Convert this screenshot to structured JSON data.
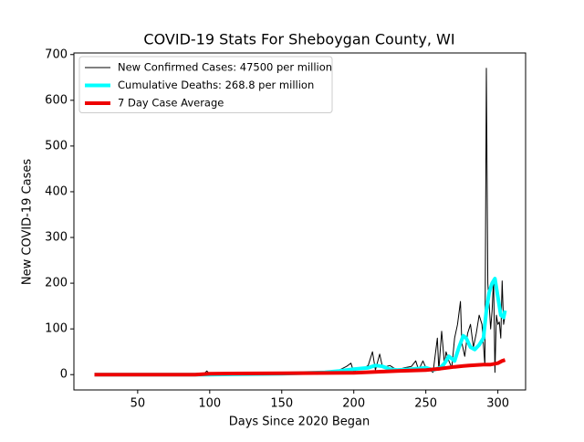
{
  "chart_data": {
    "type": "line",
    "title": "COVID-19 Stats For Sheboygan County, WI",
    "x_label": "Days Since 2020 Began",
    "y_label": "New COVID-19 Cases",
    "xlim": [
      5.75,
      319.25
    ],
    "ylim": [
      -33.5,
      703.5
    ],
    "xticks": [
      50,
      100,
      150,
      200,
      250,
      300
    ],
    "yticks": [
      0,
      100,
      200,
      300,
      400,
      500,
      600,
      700
    ],
    "legend": "upper left",
    "series": [
      {
        "name": "New Confirmed Cases: 47500 per million",
        "color": "#000000",
        "width": 1,
        "x": [
          20,
          40,
          60,
          80,
          96,
          98,
          100,
          120,
          140,
          160,
          170,
          180,
          190,
          195,
          198,
          200,
          203,
          206,
          210,
          213,
          215,
          218,
          220,
          225,
          230,
          235,
          240,
          243,
          245,
          248,
          250,
          255,
          258,
          259,
          261,
          263,
          264,
          266,
          268,
          270,
          272,
          274,
          275,
          277,
          279,
          281,
          283,
          285,
          287,
          289,
          291,
          292,
          293,
          295,
          296,
          297,
          298,
          299,
          300,
          301,
          302,
          303,
          304,
          305
        ],
        "values": [
          0,
          0,
          0,
          0,
          2,
          8,
          1,
          2,
          3,
          3,
          6,
          4,
          10,
          18,
          25,
          5,
          15,
          12,
          20,
          50,
          10,
          45,
          15,
          20,
          10,
          15,
          18,
          30,
          10,
          30,
          15,
          5,
          80,
          10,
          95,
          20,
          50,
          30,
          15,
          80,
          110,
          160,
          70,
          40,
          90,
          110,
          60,
          90,
          130,
          110,
          20,
          670,
          200,
          100,
          140,
          210,
          5,
          130,
          110,
          115,
          80,
          205,
          110,
          130
        ]
      },
      {
        "name": "Cumulative Deaths: 268.8 per million",
        "color": "#00ffff",
        "width": 4,
        "x": [
          20,
          100,
          150,
          180,
          190,
          200,
          210,
          215,
          220,
          225,
          230,
          240,
          250,
          255,
          260,
          263,
          266,
          270,
          273,
          276,
          278,
          281,
          284,
          287,
          290,
          292,
          294,
          296,
          298,
          300,
          302,
          304,
          305
        ],
        "values": [
          0,
          0,
          2,
          5,
          8,
          12,
          15,
          20,
          18,
          12,
          10,
          12,
          15,
          10,
          15,
          25,
          40,
          30,
          60,
          85,
          80,
          60,
          55,
          65,
          80,
          140,
          180,
          200,
          210,
          170,
          130,
          125,
          140
        ]
      },
      {
        "name": "7 Day Case Average",
        "color": "#ee0000",
        "width": 4,
        "x": [
          20,
          90,
          100,
          150,
          200,
          230,
          250,
          260,
          270,
          280,
          290,
          295,
          300,
          303,
          305
        ],
        "values": [
          0,
          0,
          2,
          3,
          4,
          8,
          10,
          13,
          17,
          20,
          22,
          22,
          25,
          30,
          32
        ]
      }
    ]
  }
}
